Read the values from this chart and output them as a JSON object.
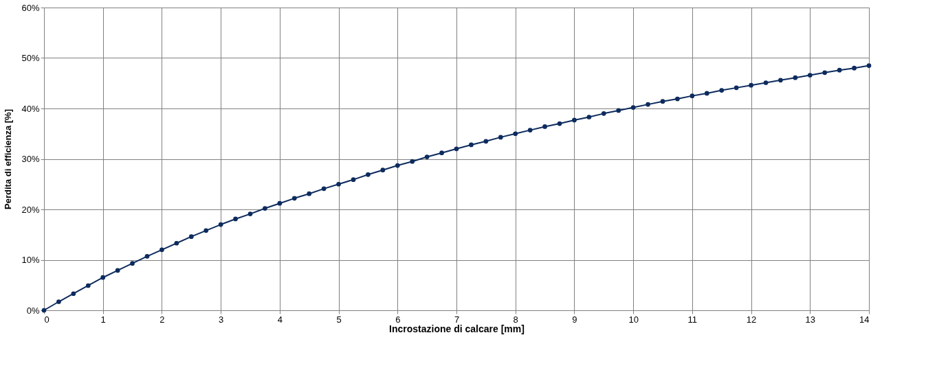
{
  "chart_data": {
    "type": "line",
    "xlabel": "Incrostazione di calcare [mm]",
    "ylabel": "Perdita di efficienza [%]",
    "x": [
      0,
      0.25,
      0.5,
      0.75,
      1,
      1.25,
      1.5,
      1.75,
      2,
      2.25,
      2.5,
      2.75,
      3,
      3.25,
      3.5,
      3.75,
      4,
      4.25,
      4.5,
      4.75,
      5,
      5.25,
      5.5,
      5.75,
      6,
      6.25,
      6.5,
      6.75,
      7,
      7.25,
      7.5,
      7.75,
      8,
      8.25,
      8.5,
      8.75,
      9,
      9.25,
      9.5,
      9.75,
      10,
      10.25,
      10.5,
      10.75,
      11,
      11.25,
      11.5,
      11.75,
      12,
      12.25,
      12.5,
      12.75,
      13,
      13.25,
      13.5,
      13.75,
      14
    ],
    "series": [
      {
        "color": "#0d2b5e",
        "values": [
          0,
          1.7,
          3.3,
          4.9,
          6.5,
          7.9,
          9.3,
          10.7,
          12,
          13.3,
          14.6,
          15.8,
          17,
          18.1,
          19.1,
          20.2,
          21.2,
          22.2,
          23.1,
          24.1,
          25,
          25.9,
          26.9,
          27.8,
          28.7,
          29.5,
          30.4,
          31.2,
          32,
          32.8,
          33.5,
          34.3,
          35,
          35.7,
          36.4,
          37,
          37.7,
          38.3,
          39,
          39.6,
          40.2,
          40.8,
          41.4,
          41.9,
          42.5,
          43,
          43.6,
          44.1,
          44.6,
          45.1,
          45.6,
          46.1,
          46.6,
          47.1,
          47.6,
          48,
          48.5
        ]
      }
    ],
    "xlim": [
      0,
      14
    ],
    "xticks": [
      0,
      1,
      2,
      3,
      4,
      5,
      6,
      7,
      8,
      9,
      10,
      11,
      12,
      13,
      14
    ],
    "ylim": [
      0,
      60
    ],
    "yticks": [
      {
        "value": 0,
        "label": "0%"
      },
      {
        "value": 10,
        "label": "10%"
      },
      {
        "value": 20,
        "label": "20%"
      },
      {
        "value": 30,
        "label": "30%"
      },
      {
        "value": 40,
        "label": "40%"
      },
      {
        "value": 50,
        "label": "50%"
      },
      {
        "value": 60,
        "label": "60%"
      }
    ],
    "grid": true,
    "marker": "circle",
    "line_style": "solid"
  }
}
